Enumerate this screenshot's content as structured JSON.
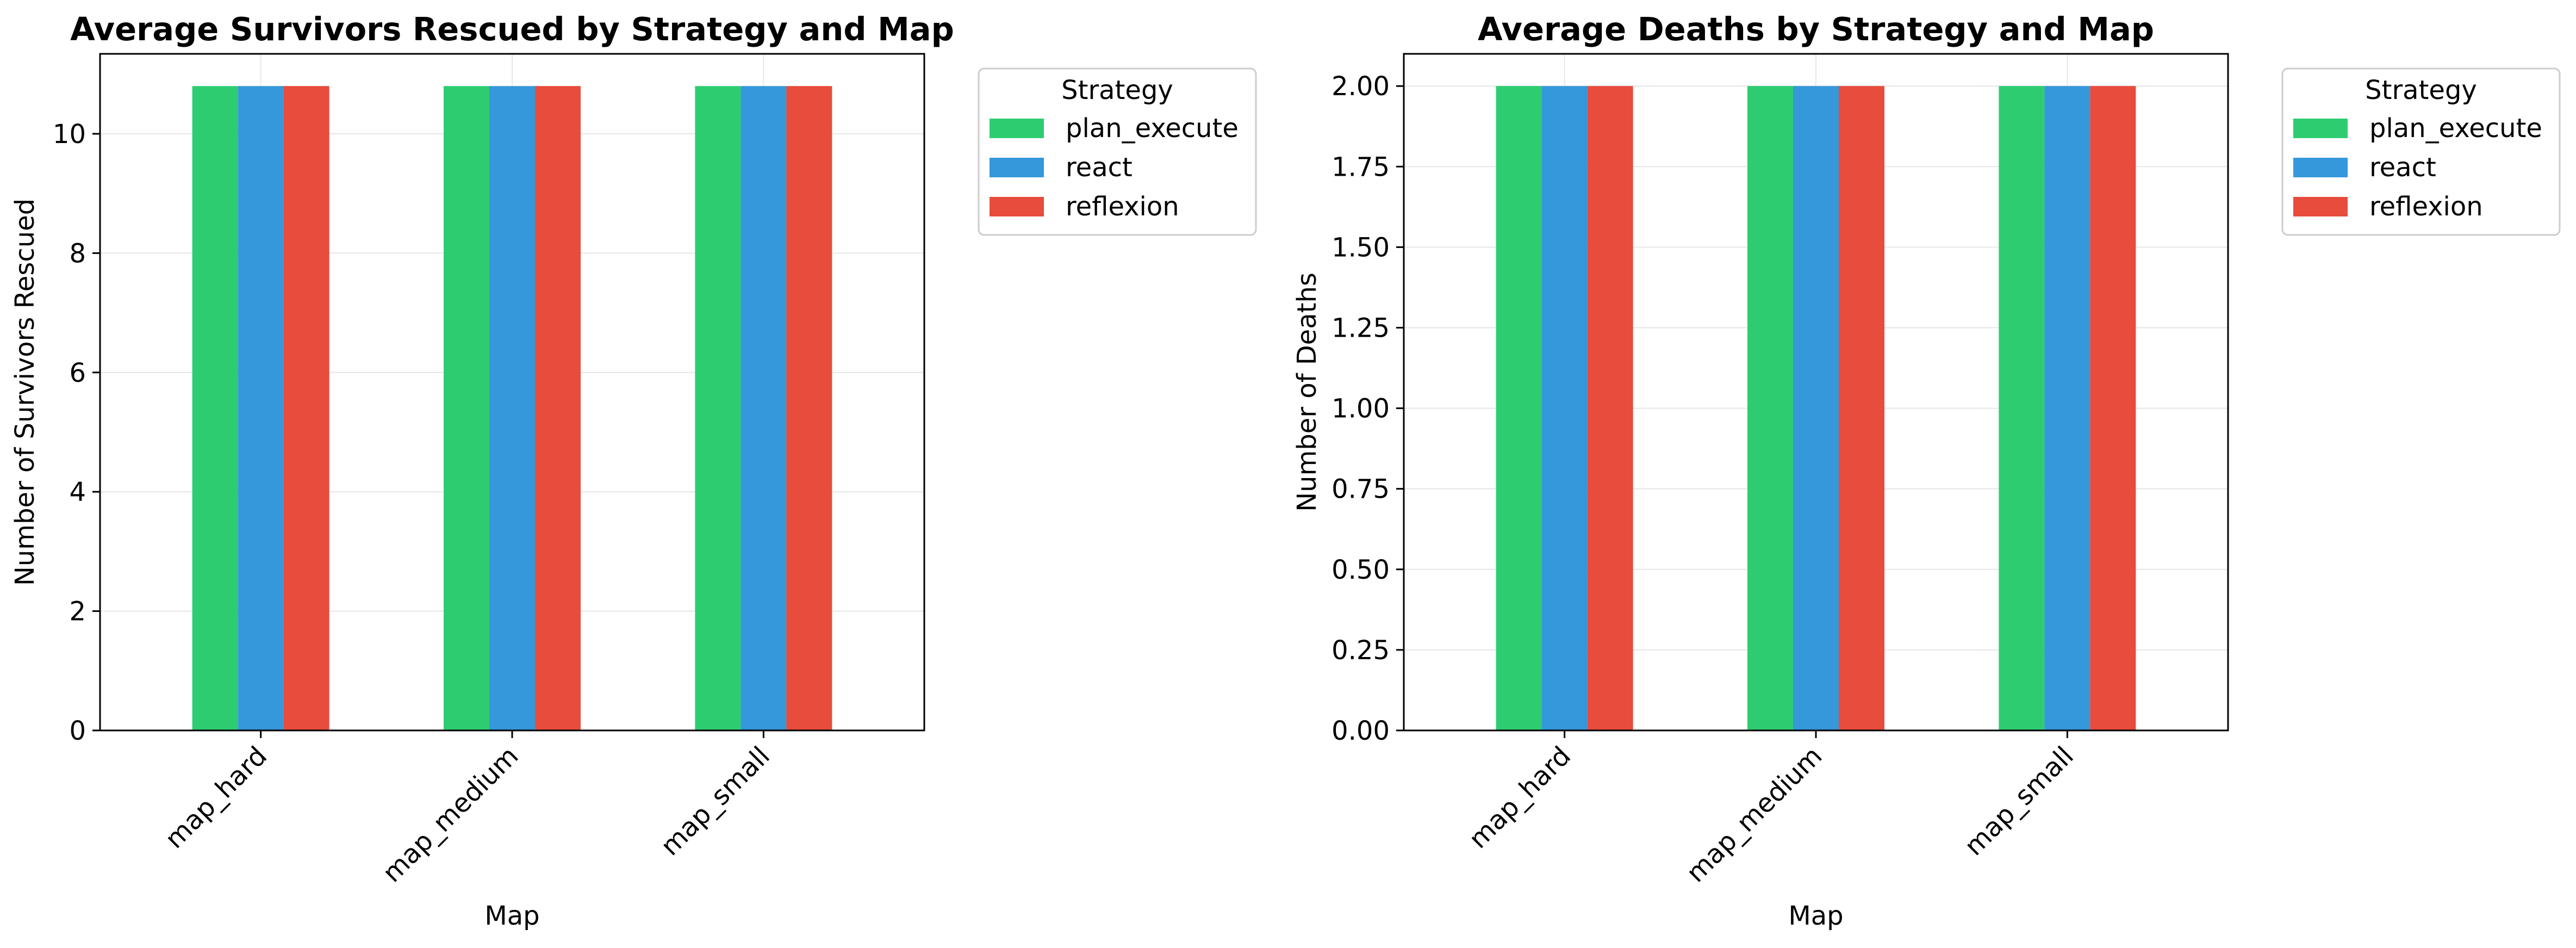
{
  "chart_data": [
    {
      "type": "bar",
      "title": "Average Survivors Rescued by Strategy and Map",
      "xlabel": "Map",
      "ylabel": "Number of Survivors Rescued",
      "categories": [
        "map_hard",
        "map_medium",
        "map_small"
      ],
      "series": [
        {
          "name": "plan_execute",
          "values": [
            10.8,
            10.8,
            10.8
          ]
        },
        {
          "name": "react",
          "values": [
            10.8,
            10.8,
            10.8
          ]
        },
        {
          "name": "reflexion",
          "values": [
            10.8,
            10.8,
            10.8
          ]
        }
      ],
      "ylim": [
        0,
        11.34
      ],
      "yticks": [
        "0",
        "2",
        "4",
        "6",
        "8",
        "10"
      ],
      "ytick_values": [
        0,
        2,
        4,
        6,
        8,
        10
      ],
      "grid": true,
      "legend": {
        "title": "Strategy",
        "placement": "outside upper right"
      }
    },
    {
      "type": "bar",
      "title": "Average Deaths by Strategy and Map",
      "xlabel": "Map",
      "ylabel": "Number of Deaths",
      "categories": [
        "map_hard",
        "map_medium",
        "map_small"
      ],
      "series": [
        {
          "name": "plan_execute",
          "values": [
            2.0,
            2.0,
            2.0
          ]
        },
        {
          "name": "react",
          "values": [
            2.0,
            2.0,
            2.0
          ]
        },
        {
          "name": "reflexion",
          "values": [
            2.0,
            2.0,
            2.0
          ]
        }
      ],
      "ylim": [
        0,
        2.1
      ],
      "yticks": [
        "0.00",
        "0.25",
        "0.50",
        "0.75",
        "1.00",
        "1.25",
        "1.50",
        "1.75",
        "2.00"
      ],
      "ytick_values": [
        0,
        0.25,
        0.5,
        0.75,
        1.0,
        1.25,
        1.5,
        1.75,
        2.0
      ],
      "grid": true,
      "legend": {
        "title": "Strategy",
        "placement": "outside upper right"
      }
    }
  ],
  "colors": {
    "plan_execute": "#2ecc71",
    "react": "#3498db",
    "reflexion": "#e74c3c",
    "grid": "#e6e6e6",
    "axes": "#000000",
    "legend_border": "#cccccc"
  }
}
